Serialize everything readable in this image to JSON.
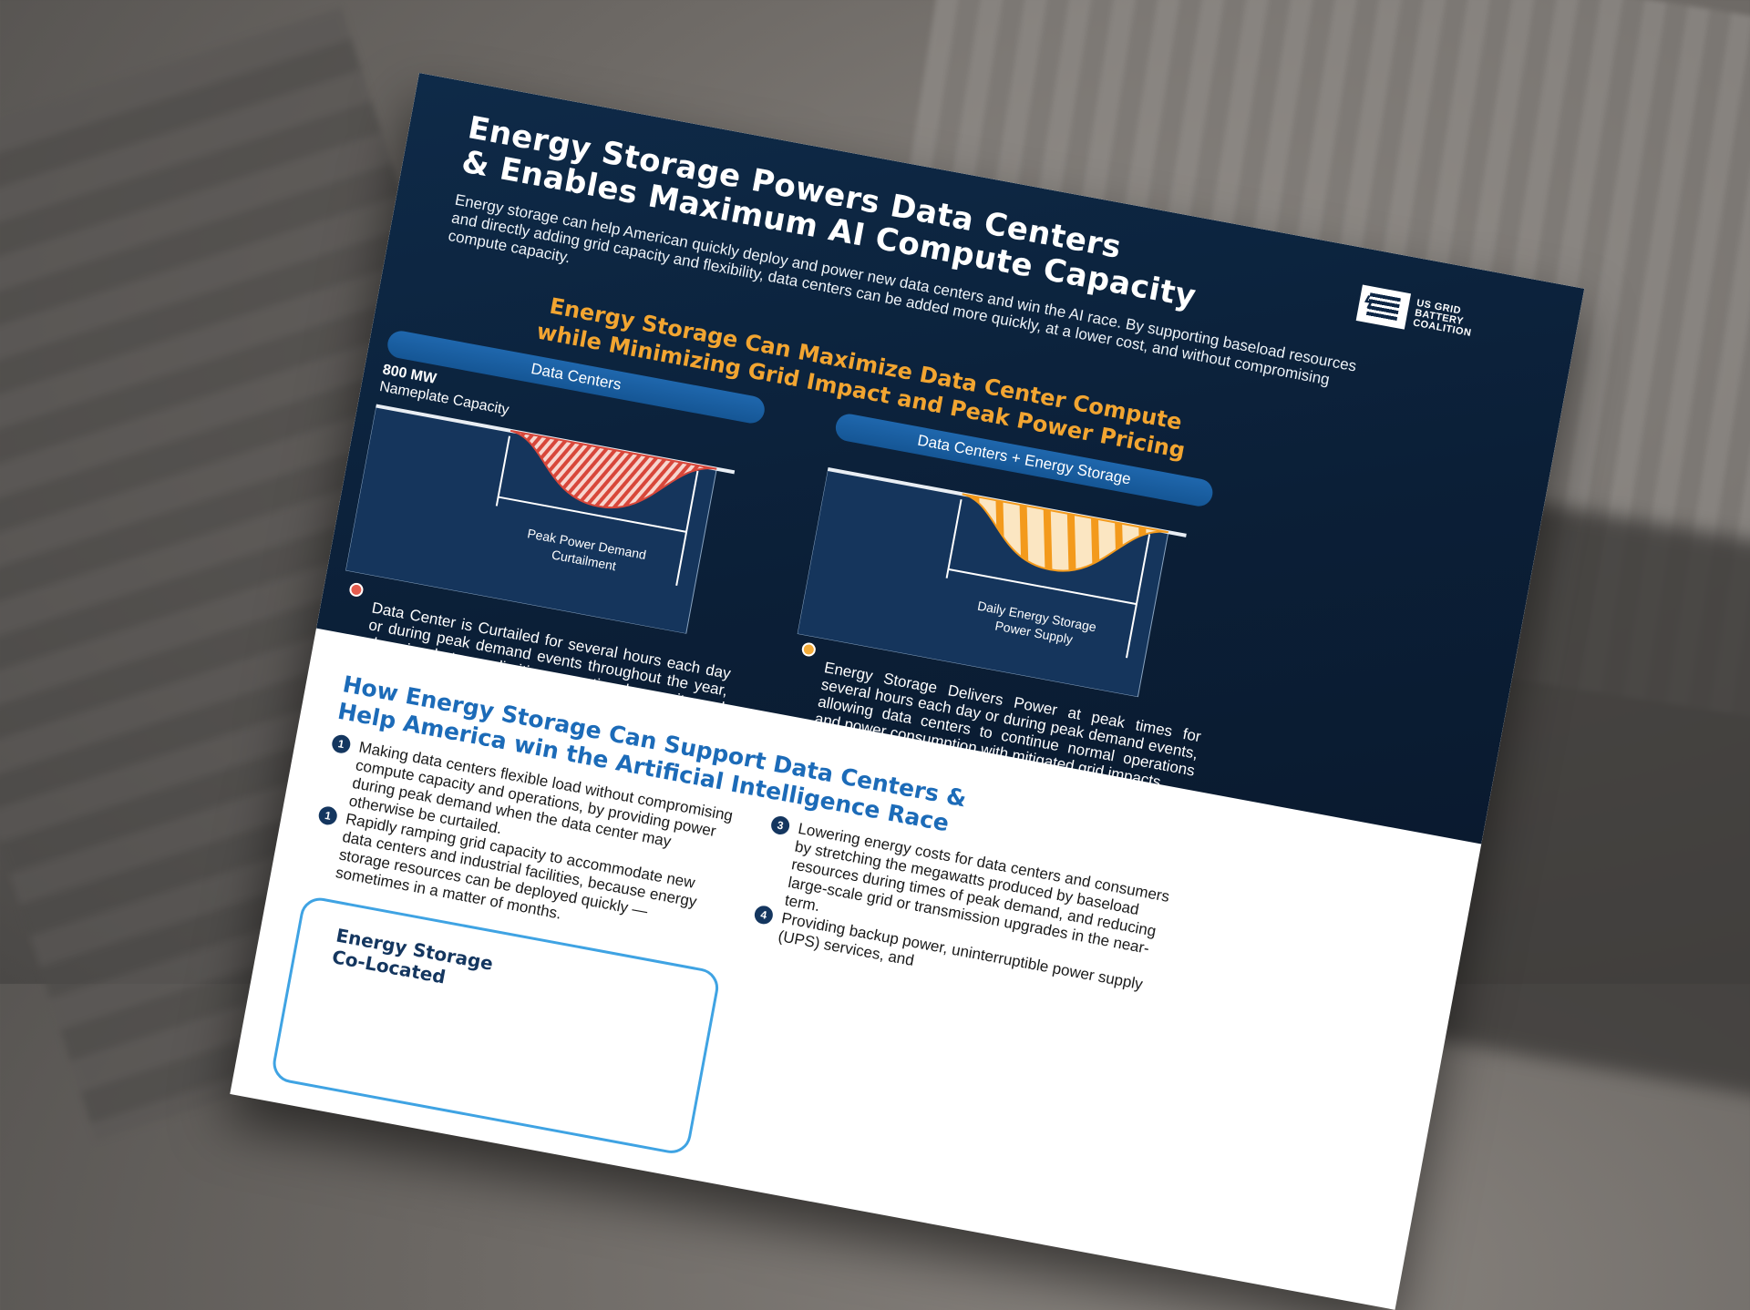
{
  "document": {
    "title_lines": [
      "Energy Storage Powers Data Centers",
      "& Enables Maximum AI Compute Capacity"
    ],
    "intro": "Energy storage can help American quickly deploy and power new data centers and win the AI race. By supporting baseload resources and directly adding grid capacity and flexibility, data centers can be added more quickly, at a lower cost, and without compromising compute capacity.",
    "logo": {
      "lines": [
        "US GRID",
        "BATTERY",
        "COALITION"
      ],
      "icon": "battery-grid-icon"
    },
    "subhead_lines": [
      "Energy Storage Can Maximize Data Center Compute",
      "while Minimizing Grid Impact and Peak Power Pricing"
    ],
    "panels": {
      "left": {
        "title": "Data Centers",
        "capacity_value": "800 MW",
        "capacity_label": "Nameplate Capacity",
        "chart_label_line1": "Peak Power Demand",
        "chart_label_line2": "Curtailment",
        "note": "Data Center is Curtailed for several hours each day or during peak demand events throughout the year, choosing between limiting operational capacity and adding strain on the power grid.",
        "dot_color": "#e45b4e"
      },
      "right": {
        "title": "Data Centers + Energy Storage",
        "chart_label_line1": "Daily Energy Storage",
        "chart_label_line2": "Power Supply",
        "note": "Energy Storage Delivers Power at peak times for several hours each day or during peak demand events, allowing data centers to continue normal operations and power consumption with mitigated grid impacts.",
        "dot_color": "#f4ac3a"
      }
    },
    "how_heading_lines": [
      "How Energy Storage Can Support Data Centers &",
      "Help America win the Artificial Intelligence Race"
    ],
    "items": [
      {
        "num": "1",
        "text": "Making data centers flexible load without compromising compute capacity and operations, by providing power during peak demand when the data center may otherwise be curtailed."
      },
      {
        "num": "1",
        "text": "Rapidly ramping grid capacity to accommodate new data centers and industrial facilities, because energy storage resources can be deployed quickly — sometimes in a matter of months."
      },
      {
        "num": "3",
        "text": "Lowering energy costs for data centers and consumers by stretching the megawatts produced by baseload resources during times of peak demand, and reducing large-scale grid or transmission upgrades in the near-term."
      },
      {
        "num": "4",
        "text": "Providing backup power, uninterruptible power supply (UPS) services, and"
      }
    ],
    "callout_lines": [
      "Energy Storage",
      "Co-Located"
    ],
    "colors": {
      "navy": "#0b1f37",
      "accent_orange": "#f2a531",
      "pill_blue": "#1f67ad",
      "heading_blue": "#1c6bb8",
      "curtail_red": "#e45b4e",
      "storage_orange": "#f4ac3a"
    }
  }
}
